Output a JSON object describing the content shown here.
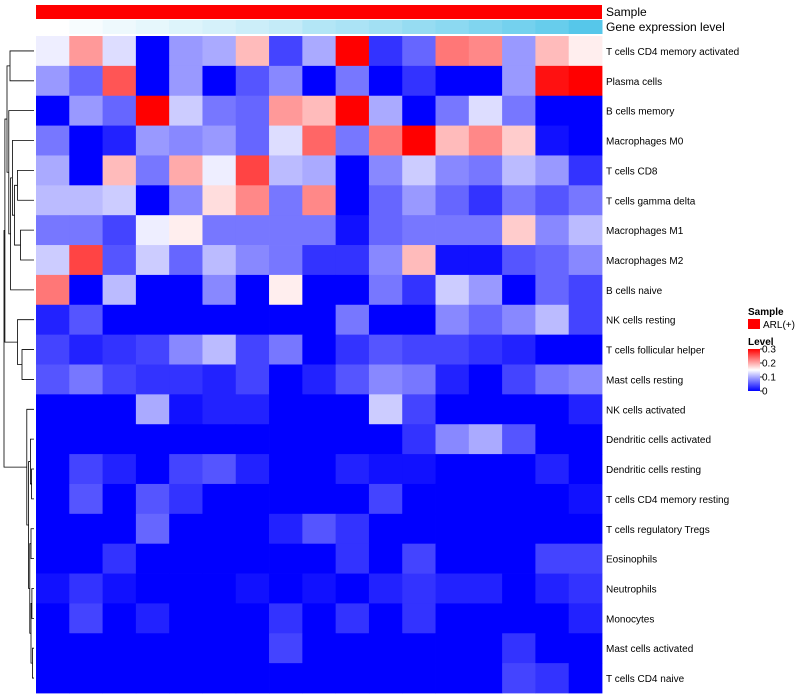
{
  "chart_data": {
    "type": "heatmap",
    "annotation_labels": [
      "Sample",
      "Gene expression level"
    ],
    "row_labels": [
      "T cells CD4 memory activated",
      "Plasma cells",
      "B cells memory",
      "Macrophages M0",
      "T cells CD8",
      "T cells gamma delta",
      "Macrophages M1",
      "Macrophages M2",
      "B cells naive",
      "NK cells resting",
      "T cells follicular helper",
      "Mast cells resting",
      "NK cells activated",
      "Dendritic cells activated",
      "Dendritic cells resting",
      "T cells CD4 memory resting",
      "T cells regulatory  Tregs",
      "Eosinophils",
      "Neutrophils",
      "Monocytes",
      "Mast cells activated",
      "T cells CD4 naive"
    ],
    "n_columns": 17,
    "values": [
      [
        0.14,
        0.21,
        0.13,
        0.0,
        0.09,
        0.1,
        0.19,
        0.04,
        0.1,
        0.3,
        0.03,
        0.06,
        0.23,
        0.22,
        0.09,
        0.19,
        0.16
      ],
      [
        0.09,
        0.06,
        0.25,
        0.0,
        0.09,
        0.0,
        0.05,
        0.08,
        0.0,
        0.07,
        0.0,
        0.03,
        0.0,
        0.0,
        0.09,
        0.29,
        0.3
      ],
      [
        0.0,
        0.09,
        0.06,
        0.3,
        0.12,
        0.07,
        0.06,
        0.21,
        0.19,
        0.3,
        0.1,
        0.0,
        0.07,
        0.13,
        0.07,
        0.0,
        0.0
      ],
      [
        0.07,
        0.0,
        0.02,
        0.09,
        0.08,
        0.09,
        0.06,
        0.13,
        0.24,
        0.07,
        0.23,
        0.3,
        0.19,
        0.22,
        0.18,
        0.01,
        0.0
      ],
      [
        0.1,
        0.0,
        0.19,
        0.07,
        0.2,
        0.14,
        0.26,
        0.11,
        0.1,
        0.0,
        0.08,
        0.12,
        0.08,
        0.07,
        0.11,
        0.09,
        0.03
      ],
      [
        0.11,
        0.11,
        0.12,
        0.0,
        0.08,
        0.17,
        0.22,
        0.07,
        0.22,
        0.0,
        0.06,
        0.09,
        0.06,
        0.03,
        0.07,
        0.05,
        0.07
      ],
      [
        0.07,
        0.07,
        0.04,
        0.14,
        0.16,
        0.07,
        0.07,
        0.07,
        0.07,
        0.01,
        0.06,
        0.07,
        0.07,
        0.07,
        0.18,
        0.08,
        0.11
      ],
      [
        0.12,
        0.26,
        0.05,
        0.12,
        0.06,
        0.11,
        0.08,
        0.07,
        0.03,
        0.03,
        0.08,
        0.19,
        0.01,
        0.01,
        0.05,
        0.06,
        0.08
      ],
      [
        0.23,
        0.0,
        0.11,
        0.0,
        0.0,
        0.08,
        0.0,
        0.16,
        0.0,
        0.0,
        0.07,
        0.03,
        0.12,
        0.09,
        0.0,
        0.06,
        0.04
      ],
      [
        0.02,
        0.05,
        0.0,
        0.0,
        0.0,
        0.0,
        0.0,
        0.0,
        0.0,
        0.07,
        0.0,
        0.0,
        0.08,
        0.06,
        0.08,
        0.11,
        0.04
      ],
      [
        0.04,
        0.02,
        0.03,
        0.04,
        0.08,
        0.11,
        0.04,
        0.07,
        0.0,
        0.03,
        0.05,
        0.04,
        0.04,
        0.03,
        0.02,
        0.0,
        0.0
      ],
      [
        0.05,
        0.07,
        0.04,
        0.03,
        0.03,
        0.02,
        0.04,
        0.0,
        0.02,
        0.05,
        0.08,
        0.07,
        0.02,
        0.0,
        0.04,
        0.07,
        0.08
      ],
      [
        0.0,
        0.0,
        0.0,
        0.1,
        0.01,
        0.02,
        0.02,
        0.0,
        0.0,
        0.0,
        0.12,
        0.04,
        0.0,
        0.0,
        0.0,
        0.0,
        0.02
      ],
      [
        0.0,
        0.0,
        0.0,
        0.0,
        0.0,
        0.0,
        0.0,
        0.0,
        0.0,
        0.0,
        0.0,
        0.03,
        0.08,
        0.1,
        0.05,
        0.0,
        0.0
      ],
      [
        0.0,
        0.04,
        0.02,
        0.0,
        0.04,
        0.05,
        0.02,
        0.0,
        0.0,
        0.02,
        0.01,
        0.01,
        0.0,
        0.0,
        0.0,
        0.02,
        0.0
      ],
      [
        0.0,
        0.05,
        0.0,
        0.05,
        0.03,
        0.0,
        0.0,
        0.0,
        0.0,
        0.0,
        0.04,
        0.0,
        0.0,
        0.0,
        0.0,
        0.0,
        0.01
      ],
      [
        0.0,
        0.0,
        0.0,
        0.06,
        0.0,
        0.0,
        0.0,
        0.02,
        0.05,
        0.03,
        0.0,
        0.0,
        0.0,
        0.0,
        0.0,
        0.0,
        0.0
      ],
      [
        0.0,
        0.0,
        0.03,
        0.0,
        0.0,
        0.0,
        0.0,
        0.0,
        0.0,
        0.03,
        0.0,
        0.04,
        0.0,
        0.0,
        0.0,
        0.04,
        0.04
      ],
      [
        0.01,
        0.03,
        0.01,
        0.0,
        0.0,
        0.0,
        0.01,
        0.0,
        0.01,
        0.0,
        0.02,
        0.03,
        0.02,
        0.02,
        0.0,
        0.02,
        0.03
      ],
      [
        0.0,
        0.04,
        0.0,
        0.02,
        0.0,
        0.0,
        0.0,
        0.03,
        0.0,
        0.03,
        0.0,
        0.03,
        0.0,
        0.0,
        0.0,
        0.0,
        0.02
      ],
      [
        0.0,
        0.0,
        0.0,
        0.0,
        0.0,
        0.0,
        0.0,
        0.04,
        0.0,
        0.0,
        0.0,
        0.0,
        0.0,
        0.0,
        0.03,
        0.0,
        0.0
      ],
      [
        0.0,
        0.0,
        0.0,
        0.0,
        0.0,
        0.0,
        0.0,
        0.0,
        0.0,
        0.0,
        0.0,
        0.0,
        0.0,
        0.0,
        0.04,
        0.03,
        0.0
      ]
    ],
    "gene_expression_level": [
      0.0,
      0.05,
      0.1,
      0.15,
      0.2,
      0.25,
      0.3,
      0.35,
      0.45,
      0.5,
      0.55,
      0.62,
      0.68,
      0.75,
      0.82,
      0.9,
      1.0
    ],
    "color_scale": {
      "min": 0,
      "max": 0.3,
      "low": "#0000ff",
      "mid": "#ffffff",
      "high": "#ff0000",
      "midpoint": 0.15
    },
    "annotation_colors": {
      "sample": "#ff0000",
      "gene_low": "#ffffff",
      "gene_high": "#56c7ea"
    },
    "legend": {
      "sample_title": "Sample",
      "sample_item": "ARL(+)",
      "level_title": "Level",
      "ticks": [
        "0.3",
        "0.2",
        "0.1",
        "0"
      ],
      "tick_values": [
        0.3,
        0.2,
        0.1,
        0
      ]
    }
  }
}
